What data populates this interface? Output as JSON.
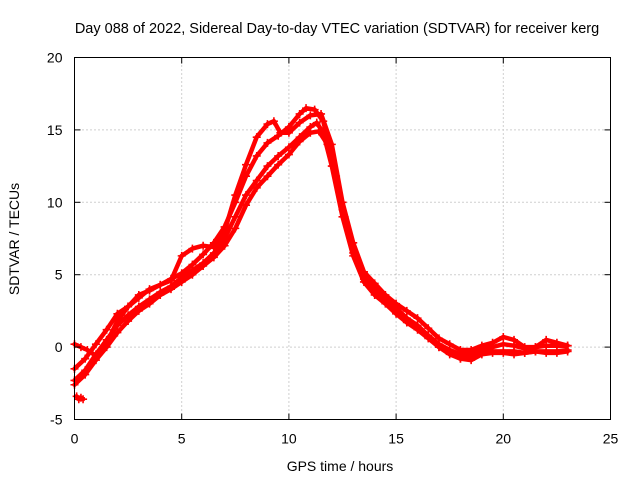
{
  "chart_data": {
    "type": "scatter",
    "title": "Day 088 of 2022, Sidereal Day-to-day VTEC variation (SDTVAR) for receiver kerg",
    "xlabel": "GPS time / hours",
    "ylabel": "SDTVAR / TECUs",
    "xlim": [
      0,
      25
    ],
    "ylim": [
      -5,
      20
    ],
    "xticks": [
      0,
      5,
      10,
      15,
      20,
      25
    ],
    "yticks": [
      -5,
      0,
      5,
      10,
      15,
      20
    ],
    "grid": true,
    "marker": "+",
    "color": "#ff0000",
    "series": [
      {
        "name": "track-1",
        "x": [
          0,
          0.5,
          1,
          1.5,
          2,
          2.5,
          3,
          3.5,
          4,
          4.5,
          5,
          5.5,
          6,
          6.5,
          7,
          7.5,
          8,
          8.5,
          9,
          9.5,
          10,
          10.5,
          11,
          11.3,
          11.6,
          12,
          12.5,
          13,
          13.5,
          14,
          14.5,
          15,
          15.5,
          16,
          16.5,
          17,
          17.5,
          18,
          18.5,
          19,
          19.5,
          20,
          20.5,
          21,
          21.5,
          22,
          22.5,
          23
        ],
        "y": [
          -2.3,
          -1.6,
          -0.5,
          0.5,
          1.5,
          2.2,
          2.8,
          3.3,
          3.8,
          4.2,
          4.8,
          5.3,
          5.8,
          6.5,
          7.5,
          9.0,
          10.5,
          11.5,
          12.5,
          13.2,
          13.8,
          14.5,
          15.2,
          15.5,
          14.8,
          12.5,
          9.0,
          6.3,
          4.5,
          3.6,
          3.0,
          2.3,
          1.7,
          1.2,
          0.6,
          0.0,
          -0.5,
          -0.8,
          -0.7,
          -0.4,
          -0.3,
          -0.3,
          -0.3,
          -0.4,
          -0.3,
          -0.3,
          -0.3,
          -0.2
        ]
      },
      {
        "name": "track-2",
        "x": [
          0,
          0.5,
          1,
          1.5,
          2,
          2.5,
          3,
          3.5,
          4,
          4.5,
          5,
          5.5,
          6,
          6.5,
          7,
          7.5,
          8,
          8.5,
          9,
          9.5,
          10,
          10.5,
          10.8,
          11.2,
          11.6,
          12,
          12.5,
          13,
          13.5,
          14,
          14.5,
          15,
          15.5,
          16,
          16.5,
          17,
          17.5,
          18,
          18.5,
          19,
          19.5,
          20,
          20.5,
          21,
          21.5,
          22,
          22.5,
          23
        ],
        "y": [
          -1.5,
          -0.8,
          0.2,
          1.2,
          2.3,
          2.8,
          3.4,
          4.0,
          4.3,
          4.7,
          5.1,
          5.7,
          6.4,
          7.2,
          8.3,
          10.0,
          11.8,
          13.2,
          14.1,
          14.6,
          15.2,
          16.1,
          16.5,
          16.4,
          15.6,
          13.2,
          9.5,
          6.8,
          5.0,
          4.1,
          3.5,
          2.7,
          2.0,
          1.5,
          0.8,
          0.2,
          -0.2,
          -0.5,
          -0.5,
          -0.2,
          0.0,
          0.2,
          0.1,
          -0.1,
          0.0,
          0.1,
          0.1,
          0.1
        ]
      },
      {
        "name": "track-3",
        "x": [
          0,
          0.5,
          1,
          1.5,
          2,
          2.5,
          3,
          3.5,
          4,
          4.5,
          5,
          5.5,
          6,
          6.5,
          7,
          7.5,
          8,
          8.5,
          9,
          9.5,
          10,
          10.5,
          11,
          11.4,
          11.8,
          12.2,
          12.6,
          13,
          13.5,
          14,
          14.5,
          15,
          15.5,
          16,
          16.5,
          17,
          17.5,
          18,
          18.5,
          19,
          19.5,
          20,
          20.5,
          21,
          21.5,
          22,
          22.5,
          23
        ],
        "y": [
          -2.6,
          -1.9,
          -0.9,
          0.0,
          1.0,
          1.8,
          2.5,
          3.0,
          3.6,
          4.0,
          4.5,
          5.0,
          5.6,
          6.2,
          7.0,
          8.2,
          9.8,
          11.0,
          11.8,
          12.6,
          13.3,
          14.2,
          14.8,
          14.9,
          14.0,
          11.8,
          9.0,
          6.5,
          4.7,
          3.9,
          3.2,
          2.4,
          1.8,
          1.4,
          0.7,
          0.0,
          -0.4,
          -0.8,
          -0.9,
          -0.5,
          -0.4,
          -0.4,
          -0.5,
          -0.4,
          -0.3,
          -0.4,
          -0.4,
          -0.3
        ]
      },
      {
        "name": "track-4",
        "x": [
          0,
          0.3,
          0.6,
          1,
          1.5,
          2,
          2.5,
          3,
          3.5,
          4,
          4.5,
          5,
          5.5,
          6,
          6.5,
          7,
          7.5,
          8,
          8.5,
          9,
          9.3,
          9.6,
          10,
          10.5,
          11,
          11.5,
          12,
          12.5,
          13,
          13.5,
          14,
          14.5,
          15,
          15.5,
          16,
          16.5,
          17,
          17.5,
          18,
          18.5,
          19,
          19.5,
          20,
          20.5,
          21,
          21.5,
          22,
          22.5,
          23
        ],
        "y": [
          0.2,
          0.0,
          -0.2,
          -0.6,
          0.3,
          1.8,
          2.8,
          3.6,
          3.9,
          4.3,
          4.6,
          6.3,
          6.8,
          7.0,
          6.9,
          8.0,
          10.5,
          12.6,
          14.5,
          15.4,
          15.6,
          14.8,
          14.8,
          15.5,
          16.0,
          16.1,
          14.0,
          10.0,
          7.2,
          5.2,
          4.4,
          3.6,
          3.0,
          2.5,
          2.0,
          1.3,
          0.6,
          0.2,
          -0.2,
          -0.2,
          0.1,
          0.3,
          0.7,
          0.5,
          0.0,
          0.0,
          0.5,
          0.3,
          0.1
        ]
      },
      {
        "name": "track-5",
        "x": [
          0.1,
          0.2,
          0.3,
          0.4
        ],
        "y": [
          -3.4,
          -3.6,
          -3.5,
          -3.6
        ]
      }
    ]
  }
}
